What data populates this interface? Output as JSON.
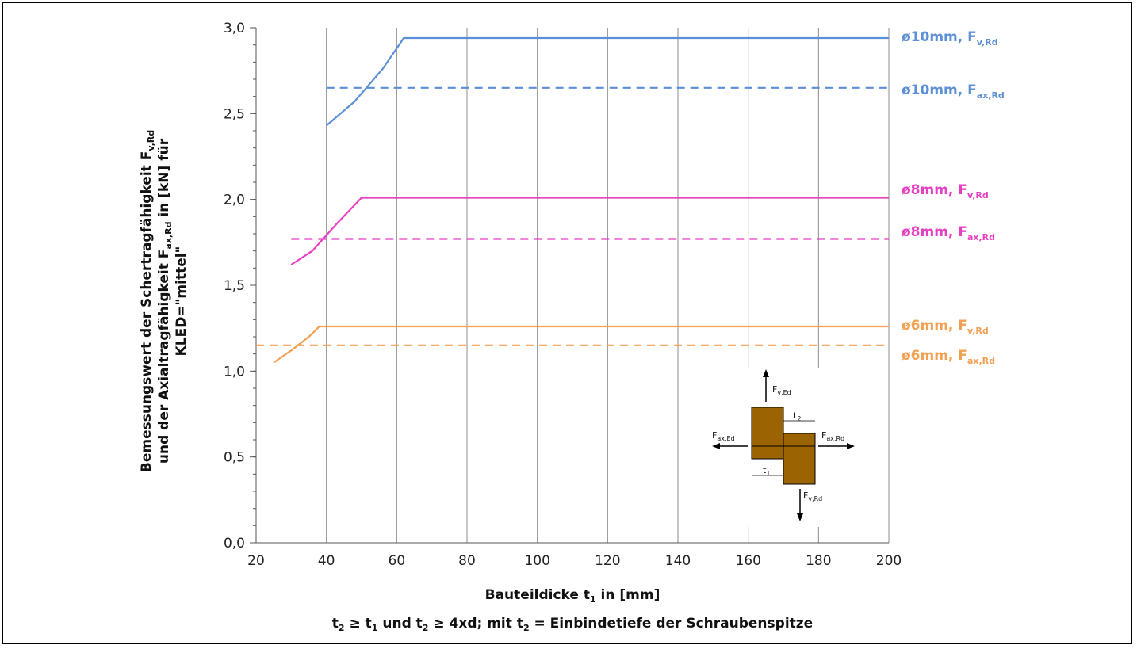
{
  "chart_data": {
    "type": "line",
    "ylabel_line1_main": "Bemessungswert der Schertragfähigkeit F",
    "ylabel_line1_sub": "v,Rd",
    "ylabel_line2_main": "und der Axialtragfähigkeit F",
    "ylabel_line2_sub": "ax,Rd",
    "ylabel_line2_tail": " in [kN] für",
    "ylabel_line3": "KLED=\"mittel\"",
    "xlabel_main": "Bauteildicke t",
    "xlabel_sub": "1",
    "xlabel_tail": " in [mm]",
    "caption": {
      "t2": "t",
      "sub2": "2",
      "geq1": " ≥ t",
      "sub1": "1",
      "und": " und t",
      "sub2b": "2",
      "geq2": " ≥ 4xd; mit t",
      "sub2c": "2",
      "tail": " = Einbindetiefe der Schraubenspitze"
    },
    "xlim": [
      20,
      200
    ],
    "ylim": [
      0,
      3.0
    ],
    "x_ticks": [
      "20",
      "40",
      "60",
      "80",
      "100",
      "120",
      "140",
      "160",
      "180",
      "200"
    ],
    "y_ticks": [
      "0,0",
      "0,5",
      "1,0",
      "1,5",
      "2,0",
      "2,5",
      "3,0"
    ],
    "grid": true,
    "series": [
      {
        "name": "ø10mm, F",
        "sub": "v,Rd",
        "color": "#5b8fd6",
        "dash": false,
        "points": [
          [
            40,
            2.43
          ],
          [
            48,
            2.57
          ],
          [
            56,
            2.76
          ],
          [
            62,
            2.94
          ],
          [
            200,
            2.94
          ]
        ]
      },
      {
        "name": "ø10mm, F",
        "sub": "ax,Rd",
        "color": "#5b8fd6",
        "dash": true,
        "points": [
          [
            40,
            2.65
          ],
          [
            200,
            2.65
          ]
        ]
      },
      {
        "name": "ø8mm, F",
        "sub": "v,Rd",
        "color": "#e83ec4",
        "dash": false,
        "points": [
          [
            30,
            1.62
          ],
          [
            36,
            1.7
          ],
          [
            43,
            1.86
          ],
          [
            50,
            2.01
          ],
          [
            200,
            2.01
          ]
        ]
      },
      {
        "name": "ø8mm, F",
        "sub": "ax,Rd",
        "color": "#e83ec4",
        "dash": true,
        "points": [
          [
            30,
            1.77
          ],
          [
            200,
            1.77
          ]
        ]
      },
      {
        "name": "ø6mm, F",
        "sub": "v,Rd",
        "color": "#f2a052",
        "dash": false,
        "points": [
          [
            25,
            1.05
          ],
          [
            30,
            1.12
          ],
          [
            35,
            1.2
          ],
          [
            38,
            1.26
          ],
          [
            200,
            1.26
          ]
        ]
      },
      {
        "name": "ø6mm, F",
        "sub": "ax,Rd",
        "color": "#f2a052",
        "dash": true,
        "points": [
          [
            20,
            1.15
          ],
          [
            200,
            1.15
          ]
        ]
      }
    ]
  },
  "inset": {
    "fv_ed": "F",
    "fv_ed_sub": "v,Ed",
    "fax_ed": "F",
    "fax_ed_sub": "ax,Ed",
    "fax_rd": "F",
    "fax_rd_sub": "ax,Rd",
    "fv_rd": "F",
    "fv_rd_sub": "v,Rd",
    "t1": "t",
    "t1_sub": "1",
    "t2": "t",
    "t2_sub": "2",
    "wood_color": "#9b6400"
  }
}
